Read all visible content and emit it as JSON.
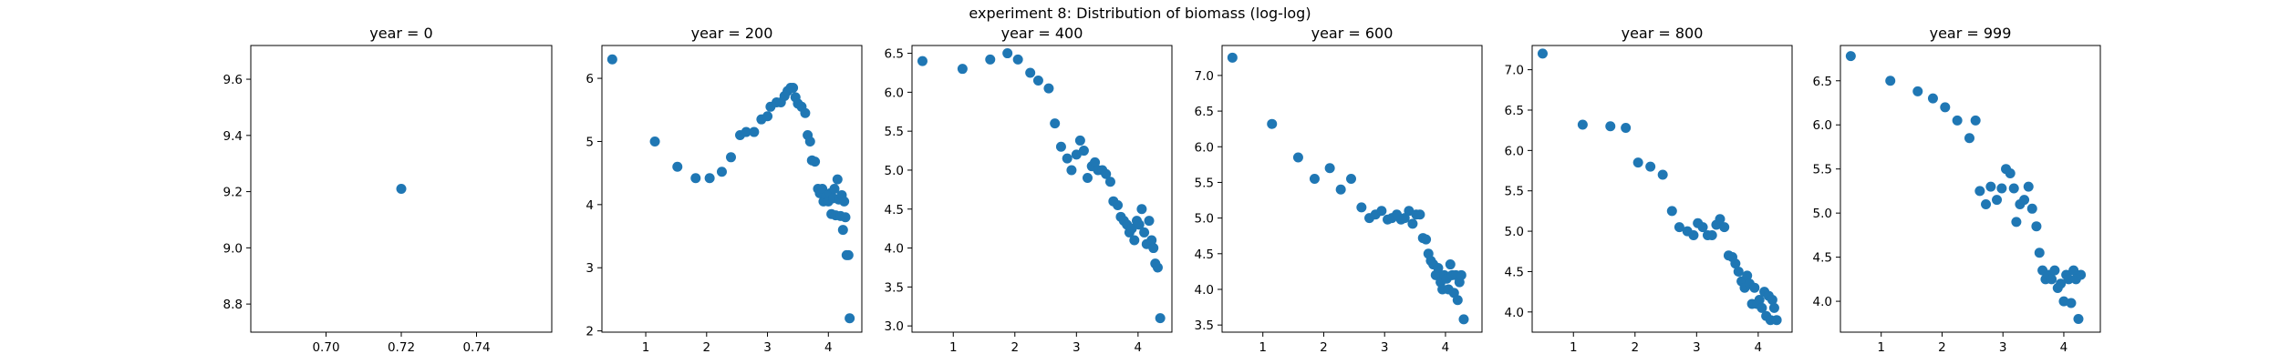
{
  "figure": {
    "suptitle": "experiment 8: Distribution of biomass (log-log)"
  },
  "chart_data": [
    {
      "type": "scatter",
      "title": "year = 0",
      "xlim": [
        0.68,
        0.76
      ],
      "ylim": [
        8.7,
        9.72
      ],
      "xticks": [
        0.7,
        0.72,
        0.74
      ],
      "xtick_labels": [
        "0.70",
        "0.72",
        "0.74"
      ],
      "yticks": [
        8.8,
        9.0,
        9.2,
        9.4,
        9.6
      ],
      "ytick_labels": [
        "8.8",
        "9.0",
        "9.2",
        "9.4",
        "9.6"
      ],
      "color": "#1f77b4",
      "points": [
        [
          0.72,
          9.21
        ]
      ]
    },
    {
      "type": "scatter",
      "title": "year = 200",
      "xlim": [
        0.28,
        4.55
      ],
      "ylim": [
        1.98,
        6.52
      ],
      "xticks": [
        1,
        2,
        3,
        4
      ],
      "xtick_labels": [
        "1",
        "2",
        "3",
        "4"
      ],
      "yticks": [
        2,
        3,
        4,
        5,
        6
      ],
      "ytick_labels": [
        "2",
        "3",
        "4",
        "5",
        "6"
      ],
      "color": "#1f77b4",
      "points": [
        [
          0.45,
          6.3
        ],
        [
          1.15,
          5.0
        ],
        [
          1.52,
          4.6
        ],
        [
          1.82,
          4.42
        ],
        [
          2.05,
          4.42
        ],
        [
          2.25,
          4.52
        ],
        [
          2.4,
          4.75
        ],
        [
          2.55,
          5.1
        ],
        [
          2.65,
          5.15
        ],
        [
          2.78,
          5.15
        ],
        [
          2.9,
          5.35
        ],
        [
          3.0,
          5.4
        ],
        [
          3.05,
          5.55
        ],
        [
          3.15,
          5.62
        ],
        [
          3.22,
          5.62
        ],
        [
          3.28,
          5.72
        ],
        [
          3.33,
          5.8
        ],
        [
          3.38,
          5.85
        ],
        [
          3.42,
          5.85
        ],
        [
          3.46,
          5.7
        ],
        [
          3.5,
          5.6
        ],
        [
          3.56,
          5.55
        ],
        [
          3.62,
          5.45
        ],
        [
          3.66,
          5.1
        ],
        [
          3.7,
          5.0
        ],
        [
          3.73,
          4.7
        ],
        [
          3.78,
          4.68
        ],
        [
          3.83,
          4.25
        ],
        [
          3.86,
          4.18
        ],
        [
          3.9,
          4.25
        ],
        [
          3.92,
          4.05
        ],
        [
          3.96,
          4.12
        ],
        [
          4.0,
          4.05
        ],
        [
          4.03,
          4.18
        ],
        [
          4.05,
          3.85
        ],
        [
          4.08,
          4.1
        ],
        [
          4.1,
          4.25
        ],
        [
          4.12,
          3.83
        ],
        [
          4.15,
          4.4
        ],
        [
          4.17,
          4.08
        ],
        [
          4.2,
          3.82
        ],
        [
          4.22,
          4.15
        ],
        [
          4.24,
          3.6
        ],
        [
          4.26,
          4.05
        ],
        [
          4.28,
          3.8
        ],
        [
          4.3,
          3.2
        ],
        [
          4.33,
          3.2
        ],
        [
          4.35,
          2.2
        ]
      ]
    },
    {
      "type": "scatter",
      "title": "year = 400",
      "xlim": [
        0.33,
        4.55
      ],
      "ylim": [
        2.92,
        6.6
      ],
      "xticks": [
        1,
        2,
        3,
        4
      ],
      "xtick_labels": [
        "1",
        "2",
        "3",
        "4"
      ],
      "yticks": [
        3.0,
        3.5,
        4.0,
        4.5,
        5.0,
        5.5,
        6.0,
        6.5
      ],
      "ytick_labels": [
        "3.0",
        "3.5",
        "4.0",
        "4.5",
        "5.0",
        "5.5",
        "6.0",
        "6.5"
      ],
      "color": "#1f77b4",
      "points": [
        [
          0.5,
          6.4
        ],
        [
          1.15,
          6.3
        ],
        [
          1.6,
          6.42
        ],
        [
          1.88,
          6.5
        ],
        [
          2.05,
          6.42
        ],
        [
          2.25,
          6.25
        ],
        [
          2.38,
          6.15
        ],
        [
          2.55,
          6.05
        ],
        [
          2.65,
          5.6
        ],
        [
          2.75,
          5.3
        ],
        [
          2.85,
          5.15
        ],
        [
          2.92,
          5.0
        ],
        [
          3.0,
          5.2
        ],
        [
          3.06,
          5.38
        ],
        [
          3.12,
          5.25
        ],
        [
          3.18,
          4.9
        ],
        [
          3.25,
          5.05
        ],
        [
          3.3,
          5.1
        ],
        [
          3.35,
          5.0
        ],
        [
          3.42,
          5.0
        ],
        [
          3.48,
          4.95
        ],
        [
          3.55,
          4.85
        ],
        [
          3.6,
          4.6
        ],
        [
          3.67,
          4.55
        ],
        [
          3.72,
          4.4
        ],
        [
          3.77,
          4.35
        ],
        [
          3.82,
          4.3
        ],
        [
          3.86,
          4.2
        ],
        [
          3.9,
          4.25
        ],
        [
          3.94,
          4.1
        ],
        [
          3.98,
          4.35
        ],
        [
          4.02,
          4.3
        ],
        [
          4.06,
          4.5
        ],
        [
          4.1,
          4.2
        ],
        [
          4.14,
          4.05
        ],
        [
          4.18,
          4.35
        ],
        [
          4.22,
          4.1
        ],
        [
          4.25,
          4.0
        ],
        [
          4.28,
          3.8
        ],
        [
          4.32,
          3.75
        ],
        [
          4.36,
          3.1
        ]
      ]
    },
    {
      "type": "scatter",
      "title": "year = 600",
      "xlim": [
        0.33,
        4.6
      ],
      "ylim": [
        3.4,
        7.42
      ],
      "xticks": [
        1,
        2,
        3,
        4
      ],
      "xtick_labels": [
        "1",
        "2",
        "3",
        "4"
      ],
      "yticks": [
        3.5,
        4.0,
        4.5,
        5.0,
        5.5,
        6.0,
        6.5,
        7.0
      ],
      "ytick_labels": [
        "3.5",
        "4.0",
        "4.5",
        "5.0",
        "5.5",
        "6.0",
        "6.5",
        "7.0"
      ],
      "color": "#1f77b4",
      "points": [
        [
          0.5,
          7.25
        ],
        [
          1.15,
          6.32
        ],
        [
          1.58,
          5.85
        ],
        [
          1.85,
          5.55
        ],
        [
          2.1,
          5.7
        ],
        [
          2.28,
          5.4
        ],
        [
          2.45,
          5.55
        ],
        [
          2.62,
          5.15
        ],
        [
          2.75,
          5.0
        ],
        [
          2.85,
          5.05
        ],
        [
          2.95,
          5.1
        ],
        [
          3.05,
          4.98
        ],
        [
          3.12,
          5.0
        ],
        [
          3.2,
          5.05
        ],
        [
          3.27,
          4.98
        ],
        [
          3.33,
          5.0
        ],
        [
          3.4,
          5.1
        ],
        [
          3.46,
          4.92
        ],
        [
          3.52,
          5.05
        ],
        [
          3.58,
          5.05
        ],
        [
          3.63,
          4.72
        ],
        [
          3.68,
          4.7
        ],
        [
          3.72,
          4.5
        ],
        [
          3.76,
          4.4
        ],
        [
          3.8,
          4.35
        ],
        [
          3.84,
          4.2
        ],
        [
          3.88,
          4.3
        ],
        [
          3.92,
          4.1
        ],
        [
          3.95,
          4.0
        ],
        [
          3.98,
          4.2
        ],
        [
          4.02,
          4.15
        ],
        [
          4.05,
          4.0
        ],
        [
          4.08,
          4.35
        ],
        [
          4.11,
          4.2
        ],
        [
          4.14,
          3.95
        ],
        [
          4.17,
          4.2
        ],
        [
          4.2,
          3.85
        ],
        [
          4.23,
          4.1
        ],
        [
          4.26,
          4.2
        ],
        [
          4.3,
          3.58
        ]
      ]
    },
    {
      "type": "scatter",
      "title": "year = 800",
      "xlim": [
        0.33,
        4.55
      ],
      "ylim": [
        3.75,
        7.3
      ],
      "xticks": [
        1,
        2,
        3,
        4
      ],
      "xtick_labels": [
        "1",
        "2",
        "3",
        "4"
      ],
      "yticks": [
        4.0,
        4.5,
        5.0,
        5.5,
        6.0,
        6.5,
        7.0
      ],
      "ytick_labels": [
        "4.0",
        "4.5",
        "5.0",
        "5.5",
        "6.0",
        "6.5",
        "7.0"
      ],
      "color": "#1f77b4",
      "points": [
        [
          0.5,
          7.2
        ],
        [
          1.15,
          6.32
        ],
        [
          1.6,
          6.3
        ],
        [
          1.85,
          6.28
        ],
        [
          2.05,
          5.85
        ],
        [
          2.25,
          5.8
        ],
        [
          2.45,
          5.7
        ],
        [
          2.6,
          5.25
        ],
        [
          2.72,
          5.05
        ],
        [
          2.85,
          5.0
        ],
        [
          2.95,
          4.95
        ],
        [
          3.02,
          5.1
        ],
        [
          3.1,
          5.05
        ],
        [
          3.18,
          4.95
        ],
        [
          3.25,
          4.95
        ],
        [
          3.32,
          5.08
        ],
        [
          3.38,
          5.15
        ],
        [
          3.45,
          5.05
        ],
        [
          3.52,
          4.7
        ],
        [
          3.58,
          4.68
        ],
        [
          3.63,
          4.6
        ],
        [
          3.68,
          4.5
        ],
        [
          3.73,
          4.38
        ],
        [
          3.78,
          4.3
        ],
        [
          3.82,
          4.45
        ],
        [
          3.86,
          4.35
        ],
        [
          3.9,
          4.1
        ],
        [
          3.94,
          4.3
        ],
        [
          3.98,
          4.1
        ],
        [
          4.02,
          4.15
        ],
        [
          4.06,
          4.05
        ],
        [
          4.1,
          4.25
        ],
        [
          4.13,
          3.95
        ],
        [
          4.17,
          4.2
        ],
        [
          4.2,
          3.9
        ],
        [
          4.23,
          4.15
        ],
        [
          4.26,
          4.05
        ],
        [
          4.3,
          3.9
        ]
      ]
    },
    {
      "type": "scatter",
      "title": "year = 999",
      "xlim": [
        0.33,
        4.6
      ],
      "ylim": [
        3.65,
        6.9
      ],
      "xticks": [
        1,
        2,
        3,
        4
      ],
      "xtick_labels": [
        "1",
        "2",
        "3",
        "4"
      ],
      "yticks": [
        4.0,
        4.5,
        5.0,
        5.5,
        6.0,
        6.5
      ],
      "ytick_labels": [
        "4.0",
        "4.5",
        "5.0",
        "5.5",
        "6.0",
        "6.5"
      ],
      "color": "#1f77b4",
      "points": [
        [
          0.5,
          6.78
        ],
        [
          1.15,
          6.5
        ],
        [
          1.6,
          6.38
        ],
        [
          1.85,
          6.3
        ],
        [
          2.05,
          6.2
        ],
        [
          2.25,
          6.05
        ],
        [
          2.45,
          5.85
        ],
        [
          2.55,
          6.05
        ],
        [
          2.62,
          5.25
        ],
        [
          2.72,
          5.1
        ],
        [
          2.8,
          5.3
        ],
        [
          2.9,
          5.15
        ],
        [
          2.98,
          5.28
        ],
        [
          3.05,
          5.5
        ],
        [
          3.12,
          5.45
        ],
        [
          3.18,
          5.28
        ],
        [
          3.22,
          4.9
        ],
        [
          3.28,
          5.1
        ],
        [
          3.35,
          5.15
        ],
        [
          3.42,
          5.3
        ],
        [
          3.48,
          5.05
        ],
        [
          3.55,
          4.85
        ],
        [
          3.6,
          4.55
        ],
        [
          3.65,
          4.35
        ],
        [
          3.7,
          4.25
        ],
        [
          3.75,
          4.3
        ],
        [
          3.8,
          4.25
        ],
        [
          3.85,
          4.35
        ],
        [
          3.9,
          4.15
        ],
        [
          3.95,
          4.2
        ],
        [
          4.0,
          4.0
        ],
        [
          4.04,
          4.3
        ],
        [
          4.08,
          4.25
        ],
        [
          4.12,
          3.98
        ],
        [
          4.16,
          4.35
        ],
        [
          4.2,
          4.25
        ],
        [
          4.24,
          3.8
        ],
        [
          4.28,
          4.3
        ]
      ]
    }
  ]
}
